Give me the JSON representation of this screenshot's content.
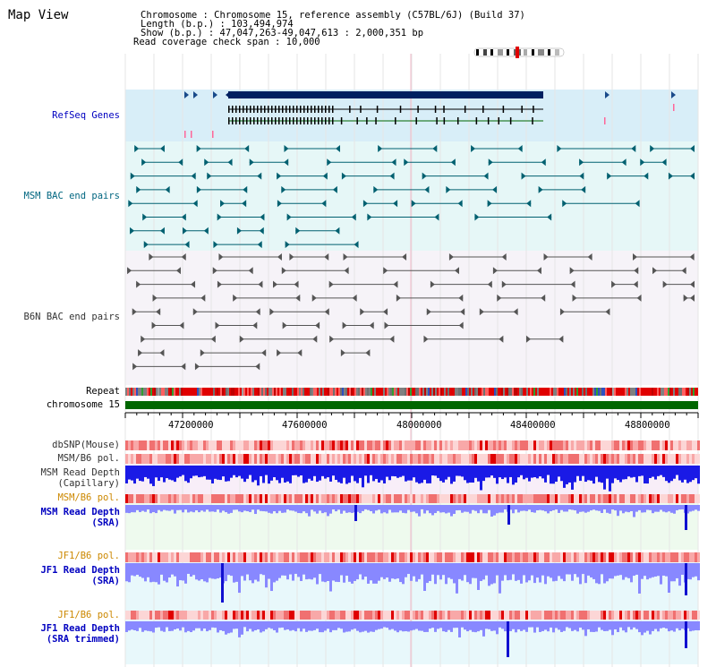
{
  "page": {
    "title": "Map View"
  },
  "info": {
    "line1": "Chromosome     : Chromosome 15, reference assembly (C57BL/6J) (Build 37)",
    "line2": "Length (b.p.) : 103,494,974",
    "line3": "Show (b.p.)  : 47,047,263-49,047,613 : 2,000,351 bp",
    "line4": "Read coverage check span : 10,000"
  },
  "tracks": {
    "refseq": "RefSeq Genes",
    "msm_bac": "MSM BAC end pairs",
    "b6n_bac": "B6N BAC end pairs",
    "repeat": "Repeat",
    "chromosome": "chromosome 15",
    "dbsnp": "dbSNP(Mouse)",
    "msm_b6_pol_1": "MSM/B6 pol.",
    "msm_read_depth_cap_1": "MSM Read Depth",
    "msm_read_depth_cap_2": "(Capillary)",
    "msm_b6_pol_2": "MSM/B6 pol.",
    "msm_read_depth_sra_1": "MSM Read Depth",
    "msm_read_depth_sra_2": "(SRA)",
    "jf1_b6_pol_1": "JF1/B6 pol.",
    "jf1_read_depth_sra_1": "JF1 Read Depth",
    "jf1_read_depth_sra_2": "(SRA)",
    "jf1_b6_pol_2": "JF1/B6 pol.",
    "jf1_read_depth_trim_1": "JF1 Read Depth",
    "jf1_read_depth_trim_2": "(SRA trimmed)"
  },
  "axis": {
    "ticks": [
      "47200000",
      "47600000",
      "48000000",
      "48400000",
      "48800000"
    ]
  },
  "colors": {
    "refseq_bg": "#d8eef8",
    "msm_bg": "#e6f7f7",
    "b6n_bg": "#f6f3f8",
    "gene_dark": "#002060",
    "msm_feature": "#006070",
    "b6n_feature": "#555555",
    "chromosome_bar": "#006600",
    "depth_blue": "#1a1ae6",
    "depth_light": "#8888ff",
    "label_blue": "#0000c0",
    "label_teal": "#006680",
    "label_orange": "#cc8800",
    "label_gray": "#333333"
  }
}
